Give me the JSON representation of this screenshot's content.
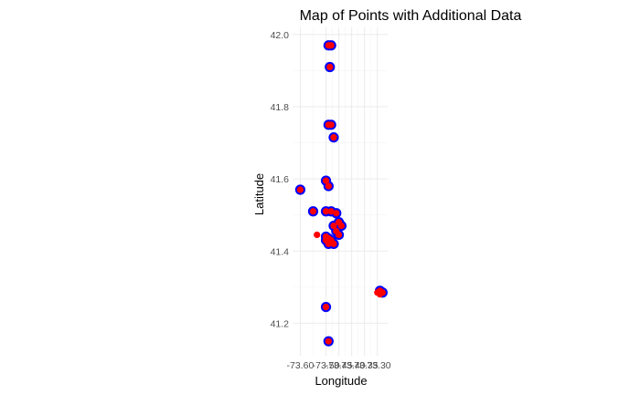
{
  "chart_data": {
    "type": "scatter",
    "title": "Map of Points with Additional Data",
    "xlabel": "Longitude",
    "ylabel": "Latitude",
    "xlim": [
      -73.63,
      -73.26
    ],
    "ylim": [
      41.11,
      42.02
    ],
    "x_ticks": [
      -73.6,
      -73.5,
      -73.45,
      -73.4,
      -73.35,
      -73.3
    ],
    "x_tick_labels": [
      "-73.60",
      "-73.50",
      "-73.45",
      "-73.40",
      "-73.35",
      "-73.30"
    ],
    "y_ticks": [
      41.2,
      41.4,
      41.6,
      41.8,
      42.0
    ],
    "y_tick_labels": [
      "41.2",
      "41.4",
      "41.6",
      "41.8",
      "42.0"
    ],
    "grid": true,
    "legend": "none",
    "colors": {
      "outer": "#0000ff",
      "inner": "#ff0000"
    },
    "series": [
      {
        "marker": "blue-ring",
        "x": [
          -73.49,
          -73.48,
          -73.485,
          -73.48,
          -73.49,
          -73.47,
          -73.6,
          -73.55,
          -73.5,
          -73.49,
          -73.5,
          -73.48,
          -73.46,
          -73.45,
          -73.44,
          -73.47,
          -73.45,
          -73.46,
          -73.5,
          -73.49,
          -73.48,
          -73.47,
          -73.5,
          -73.49,
          -73.5,
          -73.49,
          -73.29,
          -73.28
        ],
        "y": [
          41.97,
          41.97,
          41.91,
          41.75,
          41.75,
          41.715,
          41.57,
          41.51,
          41.595,
          41.58,
          41.51,
          41.51,
          41.505,
          41.48,
          41.47,
          41.47,
          41.445,
          41.455,
          41.43,
          41.42,
          41.43,
          41.42,
          41.44,
          41.435,
          41.245,
          41.15,
          41.29,
          41.285
        ]
      },
      {
        "marker": "red-dot",
        "x": [
          -73.49,
          -73.48,
          -73.485,
          -73.48,
          -73.49,
          -73.47,
          -73.6,
          -73.55,
          -73.5,
          -73.49,
          -73.5,
          -73.48,
          -73.46,
          -73.45,
          -73.44,
          -73.47,
          -73.45,
          -73.46,
          -73.5,
          -73.49,
          -73.48,
          -73.47,
          -73.5,
          -73.49,
          -73.5,
          -73.49,
          -73.29,
          -73.28,
          -73.535,
          -73.3,
          -73.29
        ],
        "y": [
          41.97,
          41.97,
          41.91,
          41.75,
          41.75,
          41.715,
          41.57,
          41.51,
          41.595,
          41.58,
          41.51,
          41.51,
          41.505,
          41.48,
          41.47,
          41.47,
          41.445,
          41.455,
          41.43,
          41.42,
          41.43,
          41.42,
          41.44,
          41.435,
          41.245,
          41.15,
          41.29,
          41.285,
          41.445,
          41.285,
          41.28
        ]
      }
    ]
  }
}
